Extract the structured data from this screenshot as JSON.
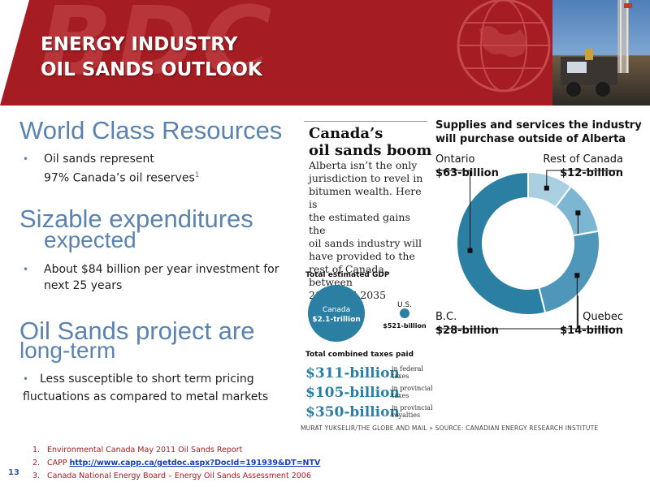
{
  "header": {
    "title_line1": "ENERGY INDUSTRY",
    "title_line2": "OIL SANDS OUTLOOK",
    "watermark": "BDC"
  },
  "sections": [
    {
      "heading": "World Class Resources",
      "bullet_line1": "Oil sands represent",
      "bullet_line2": "97% Canada’s oil reserves",
      "sup": "1"
    },
    {
      "heading_line1": "Sizable expenditures",
      "heading_line2": "expected",
      "bullet_line1": "About $84 billion per year investment for",
      "bullet_line2": "next 25 years"
    },
    {
      "heading_line1": "Oil Sands project are",
      "heading_line2": "long-term",
      "bullet_line1": "Less susceptible to short term pricing",
      "bullet_line2": "fluctuations as compared to metal markets"
    }
  ],
  "references": [
    {
      "num": "1.",
      "text": "Environmental Canada May 2011 Oil Sands Report"
    },
    {
      "num": "2.",
      "text": "CAPP ",
      "link": "http://www.capp.ca/getdoc.aspx?DocId=191939&DT=NTV"
    },
    {
      "num": "3.",
      "text": "Canada National Energy Board – Energy Oil Sands Assessment 2006"
    }
  ],
  "page_number": "13",
  "graphic": {
    "box_title_line1": "Canada’s",
    "box_title_line2": "oil sands boom",
    "box_body": [
      "Alberta isn’t the only",
      "jurisdiction to revel in",
      "bitumen wealth. Here is",
      "the estimated gains the",
      "oil sands industry will",
      "have provided to the",
      "rest of Canada between",
      "2010 and 2035"
    ],
    "gdp_title": "Total estimated GDP",
    "canada_label": "Canada",
    "canada_value": "$2.1-trillion",
    "us_label": "U.S.",
    "us_value": "$521-billion",
    "taxes_title": "Total combined taxes paid",
    "taxes": [
      {
        "amount": "$311-billion",
        "label_line1": "in federal",
        "label_line2": "taxes"
      },
      {
        "amount": "$105-billion",
        "label_line1": "in provincial",
        "label_line2": "taxes"
      },
      {
        "amount": "$350-billion",
        "label_line1": "in provincial",
        "label_line2": "royalties"
      }
    ],
    "right_title_line1": "Supplies and services the industry",
    "right_title_line2": "will purchase outside of Alberta",
    "credit": "MURAT YUKSELIR/THE GLOBE AND MAIL  »  SOURCE: CANADIAN ENERGY RESEARCH INSTITUTE"
  },
  "chart_data": {
    "type": "pie",
    "style": "donut",
    "title": "Supplies and services the industry will purchase outside of Alberta",
    "unit": "billion",
    "categories": [
      "Rest of Canada",
      "Quebec",
      "B.C.",
      "Ontario"
    ],
    "values": [
      12,
      14,
      28,
      63
    ],
    "value_labels": [
      "$12-billion",
      "$14-billion",
      "$28-billion",
      "$63-billion"
    ],
    "colors": [
      "#a9cfe0",
      "#7cb6d1",
      "#4e97bb",
      "#2a7fa3"
    ]
  },
  "colors": {
    "banner": "#a51d22",
    "heading": "#5b83b0",
    "accent_blue": "#2a7fa3"
  }
}
